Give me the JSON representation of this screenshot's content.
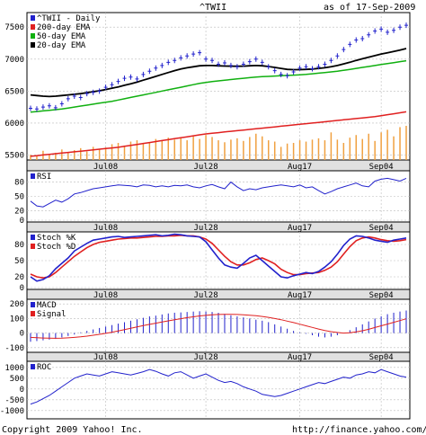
{
  "header": {
    "symbol": "^TWII",
    "as_of": "as of 17-Sep-2009"
  },
  "footer": {
    "copyright": "Copyright 2009 Yahoo! Inc.",
    "url": "http://finance.yahoo.com/"
  },
  "date_ticks": [
    "Jul08",
    "Jul28",
    "Aug17",
    "Sep04"
  ],
  "colors": {
    "price": "#2222cc",
    "ema200": "#e02020",
    "ema50": "#10b010",
    "ema20": "#000000",
    "volume": "#f0a040",
    "rsi": "#2222cc",
    "stoch_k": "#2222cc",
    "stoch_d": "#e02020",
    "macd": "#2222cc",
    "signal": "#e02020",
    "roc": "#2222cc"
  },
  "chart_data": [
    {
      "type": "line",
      "panel": "price",
      "ylim": [
        5450,
        7700
      ],
      "y_ticks": [
        5500,
        6000,
        6500,
        7000,
        7500
      ],
      "legend": [
        "^TWII - Daily",
        "200-day EMA",
        "50-day EMA",
        "20-day EMA"
      ],
      "series": [
        {
          "name": "^TWII - Daily",
          "values": [
            6230,
            6220,
            6250,
            6270,
            6240,
            6300,
            6380,
            6420,
            6400,
            6460,
            6480,
            6500,
            6560,
            6600,
            6650,
            6700,
            6720,
            6690,
            6760,
            6810,
            6860,
            6900,
            6950,
            6980,
            7020,
            7050,
            7080,
            7100,
            7000,
            6980,
            6920,
            6940,
            6900,
            6880,
            6920,
            6960,
            7000,
            6950,
            6880,
            6820,
            6760,
            6740,
            6800,
            6860,
            6880,
            6850,
            6880,
            6920,
            6980,
            7050,
            7150,
            7230,
            7300,
            7320,
            7380,
            7440,
            7470,
            7420,
            7450,
            7500,
            7530
          ]
        },
        {
          "name": "200-day EMA",
          "values": [
            5480,
            5490,
            5500,
            5510,
            5520,
            5530,
            5540,
            5550,
            5560,
            5570,
            5580,
            5590,
            5600,
            5610,
            5620,
            5635,
            5650,
            5665,
            5680,
            5695,
            5710,
            5725,
            5740,
            5755,
            5770,
            5785,
            5800,
            5815,
            5830,
            5840,
            5850,
            5860,
            5870,
            5880,
            5890,
            5900,
            5910,
            5920,
            5930,
            5940,
            5950,
            5960,
            5970,
            5980,
            5990,
            6000,
            6010,
            6020,
            6030,
            6040,
            6050,
            6060,
            6070,
            6080,
            6090,
            6100,
            6115,
            6130,
            6145,
            6160,
            6175
          ]
        },
        {
          "name": "50-day EMA",
          "values": [
            6170,
            6180,
            6190,
            6200,
            6210,
            6220,
            6235,
            6250,
            6265,
            6280,
            6295,
            6310,
            6325,
            6340,
            6360,
            6380,
            6400,
            6420,
            6440,
            6460,
            6480,
            6500,
            6520,
            6540,
            6560,
            6580,
            6600,
            6620,
            6635,
            6650,
            6660,
            6670,
            6680,
            6690,
            6700,
            6710,
            6720,
            6725,
            6730,
            6735,
            6740,
            6745,
            6750,
            6755,
            6760,
            6770,
            6780,
            6790,
            6800,
            6810,
            6825,
            6840,
            6855,
            6870,
            6885,
            6900,
            6915,
            6930,
            6945,
            6960,
            6975
          ]
        },
        {
          "name": "20-day EMA",
          "values": [
            6440,
            6430,
            6420,
            6415,
            6420,
            6430,
            6440,
            6450,
            6460,
            6475,
            6490,
            6505,
            6525,
            6545,
            6565,
            6590,
            6615,
            6640,
            6670,
            6700,
            6730,
            6760,
            6790,
            6820,
            6845,
            6865,
            6880,
            6895,
            6900,
            6900,
            6895,
            6892,
            6890,
            6888,
            6890,
            6895,
            6900,
            6895,
            6885,
            6870,
            6855,
            6840,
            6835,
            6835,
            6840,
            6845,
            6855,
            6865,
            6880,
            6900,
            6925,
            6950,
            6980,
            7005,
            7030,
            7055,
            7080,
            7100,
            7120,
            7140,
            7165
          ]
        }
      ],
      "volume": [
        80,
        70,
        140,
        90,
        110,
        160,
        120,
        150,
        180,
        130,
        200,
        170,
        190,
        240,
        260,
        220,
        280,
        300,
        250,
        270,
        320,
        290,
        340,
        310,
        330,
        300,
        360,
        320,
        380,
        350,
        300,
        270,
        310,
        330,
        290,
        350,
        400,
        360,
        300,
        280,
        200,
        250,
        260,
        300,
        280,
        310,
        330,
        300,
        420,
        310,
        260,
        340,
        380,
        320,
        400,
        290,
        420,
        460,
        360,
        500,
        520
      ]
    },
    {
      "type": "line",
      "panel": "rsi",
      "ylim": [
        0,
        100
      ],
      "y_ticks": [
        0,
        20,
        50,
        80
      ],
      "legend": [
        "RSI"
      ],
      "series": [
        {
          "name": "RSI",
          "values": [
            40,
            30,
            28,
            35,
            42,
            38,
            45,
            55,
            58,
            62,
            66,
            68,
            70,
            72,
            74,
            73,
            72,
            70,
            74,
            73,
            70,
            72,
            70,
            73,
            72,
            74,
            70,
            68,
            72,
            75,
            70,
            66,
            80,
            70,
            62,
            66,
            64,
            68,
            70,
            72,
            74,
            72,
            70,
            74,
            68,
            70,
            62,
            55,
            60,
            66,
            70,
            74,
            78,
            72,
            70,
            82,
            86,
            88,
            85,
            82,
            88
          ]
        }
      ]
    },
    {
      "type": "line",
      "panel": "stoch",
      "ylim": [
        0,
        100
      ],
      "y_ticks": [
        0,
        20,
        50,
        80
      ],
      "legend": [
        "Stoch %K",
        "Stoch %D"
      ],
      "series": [
        {
          "name": "Stoch %K",
          "values": [
            20,
            12,
            15,
            22,
            35,
            45,
            55,
            68,
            75,
            82,
            88,
            90,
            92,
            94,
            95,
            93,
            94,
            95,
            96,
            97,
            98,
            96,
            97,
            99,
            98,
            96,
            95,
            94,
            85,
            70,
            55,
            42,
            38,
            36,
            45,
            55,
            60,
            50,
            40,
            30,
            20,
            18,
            22,
            25,
            28,
            26,
            30,
            38,
            48,
            62,
            78,
            90,
            96,
            95,
            92,
            88,
            86,
            84,
            88,
            90,
            92
          ]
        },
        {
          "name": "Stoch %D",
          "values": [
            25,
            20,
            18,
            20,
            28,
            38,
            48,
            58,
            66,
            74,
            80,
            84,
            86,
            88,
            90,
            91,
            92,
            92,
            93,
            94,
            95,
            95,
            96,
            96,
            97,
            96,
            96,
            94,
            90,
            82,
            70,
            58,
            48,
            42,
            42,
            46,
            52,
            55,
            50,
            44,
            34,
            28,
            24,
            24,
            26,
            27,
            28,
            32,
            38,
            48,
            62,
            76,
            87,
            92,
            94,
            92,
            89,
            87,
            86,
            87,
            89
          ]
        }
      ]
    },
    {
      "type": "bar",
      "panel": "macd",
      "ylim": [
        -120,
        220
      ],
      "y_ticks": [
        -100,
        0,
        100,
        200
      ],
      "legend": [
        "MACD",
        "Signal"
      ],
      "series": [
        {
          "name": "MACD",
          "values": [
            -60,
            -55,
            -50,
            -45,
            -40,
            -30,
            -20,
            -10,
            5,
            15,
            25,
            35,
            45,
            55,
            65,
            75,
            85,
            95,
            105,
            115,
            120,
            128,
            135,
            140,
            142,
            145,
            148,
            150,
            148,
            145,
            140,
            132,
            122,
            115,
            108,
            100,
            92,
            85,
            75,
            60,
            45,
            30,
            15,
            5,
            -5,
            -15,
            -25,
            -30,
            -25,
            -15,
            0,
            20,
            40,
            60,
            80,
            100,
            115,
            130,
            140,
            148,
            155
          ]
        },
        {
          "name": "Signal",
          "values": [
            -30,
            -32,
            -34,
            -35,
            -36,
            -35,
            -33,
            -30,
            -26,
            -21,
            -15,
            -9,
            -2,
            6,
            15,
            24,
            33,
            42,
            51,
            60,
            68,
            76,
            84,
            92,
            99,
            106,
            112,
            118,
            122,
            126,
            128,
            129,
            129,
            128,
            126,
            123,
            119,
            114,
            108,
            100,
            92,
            82,
            72,
            61,
            50,
            39,
            28,
            18,
            10,
            4,
            0,
            2,
            8,
            16,
            26,
            38,
            50,
            62,
            74,
            86,
            98
          ]
        }
      ]
    },
    {
      "type": "line",
      "panel": "roc",
      "ylim": [
        -1300,
        1200
      ],
      "y_ticks": [
        -1000,
        -500,
        0,
        500,
        1000
      ],
      "legend": [
        "ROC"
      ],
      "series": [
        {
          "name": "ROC",
          "values": [
            -700,
            -600,
            -450,
            -300,
            -100,
            100,
            300,
            500,
            600,
            700,
            650,
            600,
            700,
            800,
            750,
            700,
            650,
            720,
            800,
            900,
            820,
            700,
            600,
            750,
            800,
            650,
            500,
            600,
            700,
            550,
            400,
            300,
            350,
            250,
            100,
            0,
            -100,
            -250,
            -300,
            -350,
            -300,
            -200,
            -100,
            0,
            100,
            200,
            300,
            250,
            350,
            450,
            550,
            500,
            650,
            700,
            800,
            750,
            900,
            800,
            700,
            600,
            550
          ]
        }
      ]
    }
  ]
}
